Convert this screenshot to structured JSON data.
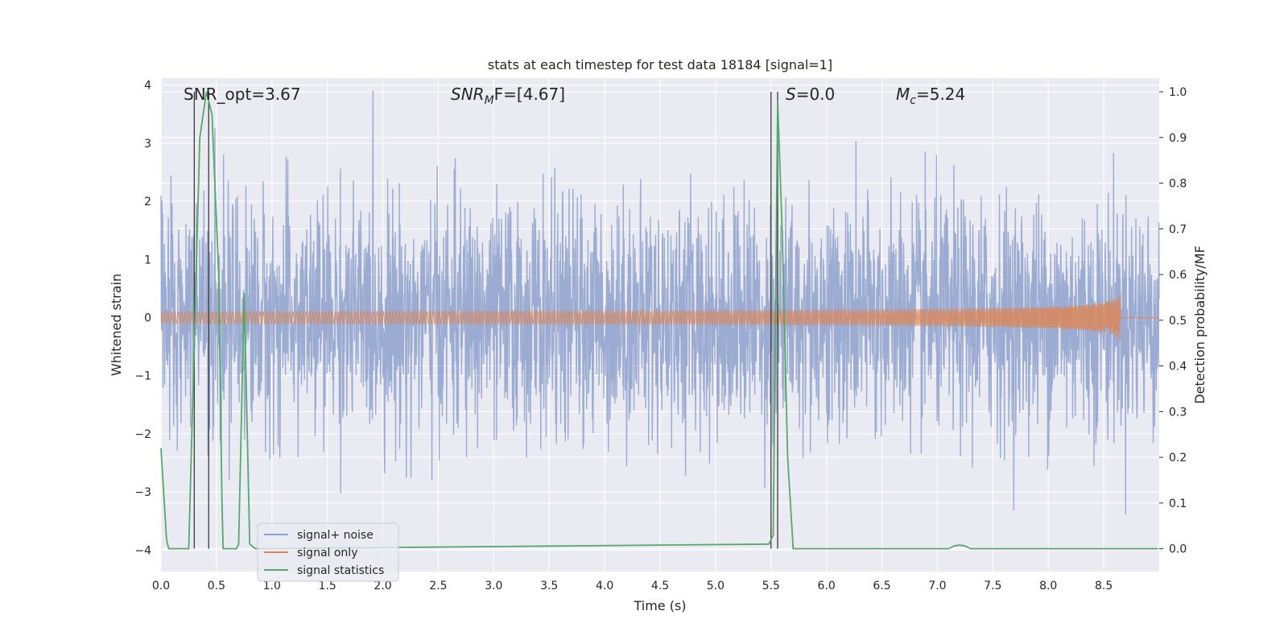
{
  "chart_data": {
    "type": "line",
    "title": "stats at each timestep for test data 18184 [signal=1]",
    "xlabel": "Time (s)",
    "ylabel_left": "Whitened strain",
    "ylabel_right": "Detection probability/MF",
    "xlim": [
      0.0,
      9.0
    ],
    "ylim_left": [
      -4.37,
      4.12
    ],
    "ylim_right": [
      -0.05,
      1.03
    ],
    "x_ticks": [
      "0.0",
      "0.5",
      "1.0",
      "1.5",
      "2.0",
      "2.5",
      "3.0",
      "3.5",
      "4.0",
      "4.5",
      "5.0",
      "5.5",
      "6.0",
      "6.5",
      "7.0",
      "7.5",
      "8.0",
      "8.5"
    ],
    "y_ticks_left": [
      "−4",
      "−3",
      "−2",
      "−1",
      "0",
      "1",
      "2",
      "3",
      "4"
    ],
    "y_ticks_right": [
      "0.0",
      "0.1",
      "0.2",
      "0.3",
      "0.4",
      "0.5",
      "0.6",
      "0.7",
      "0.8",
      "0.9",
      "1.0"
    ],
    "grid": true,
    "legend_position": "lower-left",
    "annotations": {
      "snr_opt": "SNR_opt=3.67",
      "snr_mf_prefix": "SNR",
      "snr_mf_sub": "M",
      "snr_mf_suffix": "F=[4.67]",
      "s_prefix": "S",
      "s_suffix": "=0.0",
      "mc_prefix": "M",
      "mc_sub": "c",
      "mc_suffix": "=5.24"
    },
    "vertical_markers": [
      0.3,
      0.43,
      5.5,
      5.56
    ],
    "series": [
      {
        "name": "signal+ noise",
        "axis": "left",
        "color": "#8da0cb",
        "description": "whitened noisy strain, roughly unit-variance noise spanning about -4 to 4",
        "amplitude_sigma": 1.0,
        "peak_abs": 3.9
      },
      {
        "name": "signal only",
        "axis": "left",
        "color": "#dd8452",
        "description": "chirp signal growing in amplitude until ~8.65 s",
        "x_end": 8.65,
        "peak_abs": 0.45
      },
      {
        "name": "signal statistics",
        "axis": "right",
        "color": "#55a868",
        "x": [
          0.0,
          0.05,
          0.07,
          0.25,
          0.3,
          0.35,
          0.41,
          0.46,
          0.52,
          0.55,
          0.56,
          0.68,
          0.7,
          0.75,
          0.8,
          0.85,
          5.48,
          5.52,
          5.56,
          5.6,
          5.65,
          5.7,
          7.1,
          7.15,
          7.2,
          7.25,
          7.3,
          8.99
        ],
        "y": [
          0.22,
          0.02,
          0.0,
          0.0,
          0.45,
          0.9,
          1.0,
          0.95,
          0.6,
          0.1,
          0.0,
          0.0,
          0.01,
          0.56,
          0.01,
          0.0,
          0.01,
          0.03,
          0.98,
          0.7,
          0.2,
          0.0,
          0.0,
          0.006,
          0.008,
          0.006,
          0.0,
          0.0
        ]
      }
    ]
  }
}
